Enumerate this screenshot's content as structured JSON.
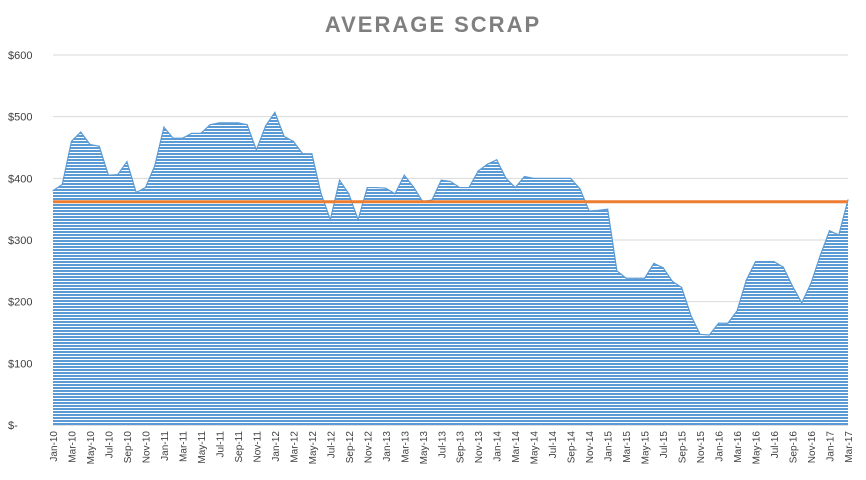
{
  "chart_data": {
    "type": "area",
    "title": "AVERAGE SCRAP",
    "xlabel": "",
    "ylabel": "",
    "ylim": [
      0,
      600
    ],
    "y_ticks": [
      0,
      100,
      200,
      300,
      400,
      500,
      600
    ],
    "y_tick_labels": [
      "$-",
      "$100",
      "$200",
      "$300",
      "$400",
      "$500",
      "$600"
    ],
    "x_tick_labels": [
      "Jan-10",
      "Mar-10",
      "May-10",
      "Jul-10",
      "Sep-10",
      "Nov-10",
      "Jan-11",
      "Mar-11",
      "May-11",
      "Jul-11",
      "Sep-11",
      "Nov-11",
      "Jan-12",
      "Mar-12",
      "May-12",
      "Jul-12",
      "Sep-12",
      "Nov-12",
      "Jan-13",
      "Mar-13",
      "May-13",
      "Jul-13",
      "Sep-13",
      "Nov-13",
      "Jan-14",
      "Mar-14",
      "May-14",
      "Jul-14",
      "Sep-14",
      "Nov-14",
      "Jan-15",
      "Mar-15",
      "May-15",
      "Jul-15",
      "Sep-15",
      "Nov-15",
      "Jan-16",
      "Mar-16",
      "May-16",
      "Jul-16",
      "Sep-16",
      "Nov-16",
      "Jan-17",
      "Mar-17"
    ],
    "grid": true,
    "legend": "none",
    "series": [
      {
        "type": "area",
        "color": "#5b9bd5",
        "categories": [
          "Jan-10",
          "Feb-10",
          "Mar-10",
          "Apr-10",
          "May-10",
          "Jun-10",
          "Jul-10",
          "Aug-10",
          "Sep-10",
          "Oct-10",
          "Nov-10",
          "Dec-10",
          "Jan-11",
          "Feb-11",
          "Mar-11",
          "Apr-11",
          "May-11",
          "Jun-11",
          "Jul-11",
          "Aug-11",
          "Sep-11",
          "Oct-11",
          "Nov-11",
          "Dec-11",
          "Jan-12",
          "Feb-12",
          "Mar-12",
          "Apr-12",
          "May-12",
          "Jun-12",
          "Jul-12",
          "Aug-12",
          "Sep-12",
          "Oct-12",
          "Nov-12",
          "Dec-12",
          "Jan-13",
          "Feb-13",
          "Mar-13",
          "Apr-13",
          "May-13",
          "Jun-13",
          "Jul-13",
          "Aug-13",
          "Sep-13",
          "Oct-13",
          "Nov-13",
          "Dec-13",
          "Jan-14",
          "Feb-14",
          "Mar-14",
          "Apr-14",
          "May-14",
          "Jun-14",
          "Jul-14",
          "Aug-14",
          "Sep-14",
          "Oct-14",
          "Nov-14",
          "Dec-14",
          "Jan-15",
          "Feb-15",
          "Mar-15",
          "Apr-15",
          "May-15",
          "Jun-15",
          "Jul-15",
          "Aug-15",
          "Sep-15",
          "Oct-15",
          "Nov-15",
          "Dec-15",
          "Jan-16",
          "Feb-16",
          "Mar-16",
          "Apr-16",
          "May-16",
          "Jun-16",
          "Jul-16",
          "Aug-16",
          "Sep-16",
          "Oct-16",
          "Nov-16",
          "Dec-16",
          "Jan-17",
          "Feb-17",
          "Mar-17"
        ],
        "values": [
          380,
          390,
          460,
          475,
          455,
          452,
          405,
          406,
          427,
          377,
          385,
          420,
          483,
          465,
          465,
          473,
          473,
          487,
          490,
          490,
          490,
          487,
          446,
          485,
          507,
          468,
          460,
          440,
          440,
          375,
          333,
          397,
          375,
          333,
          385,
          385,
          384,
          375,
          405,
          386,
          362,
          365,
          397,
          395,
          385,
          385,
          412,
          423,
          430,
          400,
          385,
          403,
          400,
          400,
          400,
          400,
          400,
          383,
          347,
          348,
          350,
          250,
          238,
          238,
          238,
          262,
          255,
          233,
          223,
          178,
          147,
          146,
          165,
          165,
          185,
          235,
          265,
          265,
          265,
          256,
          225,
          198,
          230,
          275,
          315,
          308,
          365
        ]
      },
      {
        "type": "line",
        "color": "#ed7d31",
        "constant_value": 362
      }
    ]
  }
}
